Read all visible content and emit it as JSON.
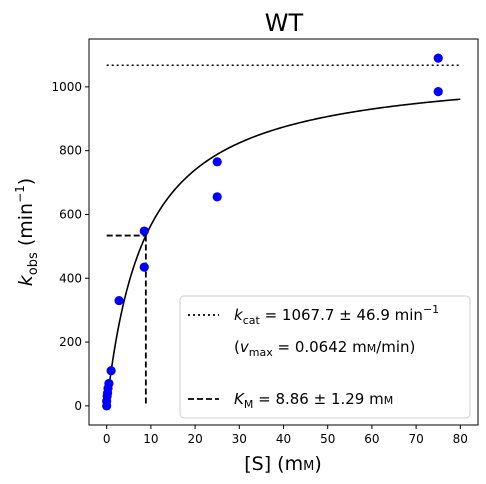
{
  "chart_data": {
    "type": "scatter",
    "title": "WT",
    "xlabel": "[S] (mм)",
    "ylabel": "k_obs (min⁻¹)",
    "xlim": [
      -4,
      84
    ],
    "ylim": [
      -60,
      1150
    ],
    "x_ticks": [
      0,
      10,
      20,
      30,
      40,
      50,
      60,
      70,
      80
    ],
    "y_ticks": [
      0,
      200,
      400,
      600,
      800,
      1000
    ],
    "grid": false,
    "legend_position": "lower-right",
    "points": {
      "color": "#0000ff",
      "x": [
        0,
        0,
        0.1,
        0.2,
        0.3,
        0.5,
        1,
        2.8,
        8.5,
        8.5,
        25,
        25,
        75,
        75
      ],
      "y": [
        0,
        15,
        30,
        40,
        55,
        70,
        110,
        330,
        435,
        548,
        655,
        765,
        985,
        1090
      ]
    },
    "fit_curve": {
      "vmax": 1067.7,
      "km": 8.86,
      "x_start": 0,
      "x_end": 80,
      "color": "#000000"
    },
    "kcat_line": {
      "y": 1067.7,
      "x_start": 0,
      "x_end": 80,
      "style": "dotted"
    },
    "km_line": {
      "x": 8.86,
      "y": 533.85,
      "style": "dashed"
    },
    "legend": {
      "kcat_text": "k_cat = 1067.7 ± 46.9 min⁻¹",
      "vmax_text": "(v_max = 0.0642 mм/min)",
      "km_text": "K_M = 8.86 ± 1.29 mм"
    }
  }
}
